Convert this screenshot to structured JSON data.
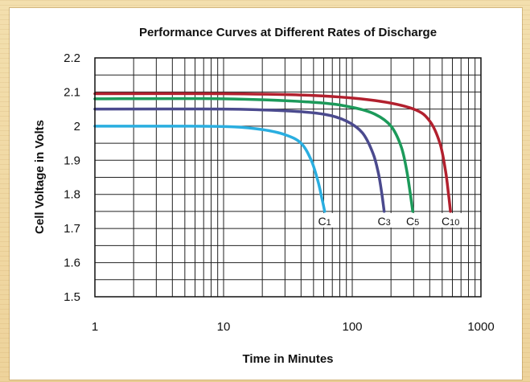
{
  "chart_data": {
    "type": "line",
    "title": "Performance Curves at Different Rates of Discharge",
    "xlabel": "Time in Minutes",
    "ylabel": "Cell Voltage in Volts",
    "x_scale": "log",
    "xlim": [
      1,
      1000
    ],
    "ylim": [
      1.5,
      2.2
    ],
    "x_ticks": [
      {
        "value": 1,
        "label": "1"
      },
      {
        "value": 10,
        "label": "10"
      },
      {
        "value": 100,
        "label": "100"
      },
      {
        "value": 1000,
        "label": "1000"
      }
    ],
    "y_ticks": [
      {
        "value": 2.2,
        "label": "2.2"
      },
      {
        "value": 2.1,
        "label": "2.1"
      },
      {
        "value": 2.0,
        "label": "2"
      },
      {
        "value": 1.9,
        "label": "1.9"
      },
      {
        "value": 1.8,
        "label": "1.8"
      },
      {
        "value": 1.7,
        "label": "1.7"
      },
      {
        "value": 1.6,
        "label": "1.6"
      },
      {
        "value": 1.5,
        "label": "1.5"
      }
    ],
    "grid": true,
    "series": [
      {
        "name": "C1",
        "label_main": "C",
        "label_sub": "1",
        "color": "#2aaee0",
        "x": [
          1,
          5,
          12,
          20,
          30,
          40,
          48,
          54,
          58,
          61
        ],
        "y": [
          2.0,
          2.0,
          1.998,
          1.99,
          1.975,
          1.95,
          1.9,
          1.84,
          1.79,
          1.75
        ]
      },
      {
        "name": "C3",
        "label_main": "C",
        "label_sub": "3",
        "color": "#4b4a8e",
        "x": [
          1,
          10,
          30,
          60,
          90,
          120,
          145,
          160,
          170,
          177
        ],
        "y": [
          2.05,
          2.05,
          2.045,
          2.035,
          2.015,
          1.98,
          1.92,
          1.86,
          1.8,
          1.75
        ]
      },
      {
        "name": "C5",
        "label_main": "C",
        "label_sub": "5",
        "color": "#1c9a5a",
        "x": [
          1,
          10,
          50,
          100,
          150,
          200,
          240,
          265,
          283,
          295
        ],
        "y": [
          2.08,
          2.08,
          2.07,
          2.055,
          2.035,
          2.0,
          1.94,
          1.87,
          1.8,
          1.75
        ]
      },
      {
        "name": "C10",
        "label_main": "C",
        "label_sub": "10",
        "color": "#b2202e",
        "x": [
          1,
          10,
          50,
          150,
          300,
          400,
          480,
          530,
          560,
          580
        ],
        "y": [
          2.095,
          2.095,
          2.09,
          2.075,
          2.05,
          2.015,
          1.95,
          1.87,
          1.8,
          1.75
        ]
      }
    ]
  }
}
